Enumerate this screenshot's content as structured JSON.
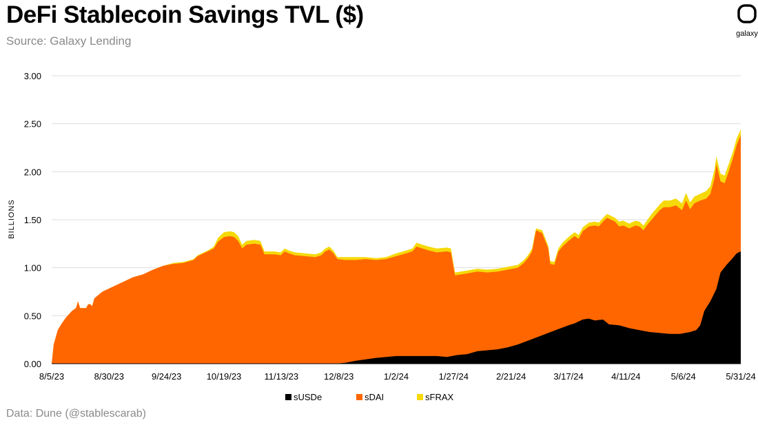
{
  "header": {
    "title": "DeFi Stablecoin Savings TVL ($)",
    "subtitle": "Source: Galaxy Lending"
  },
  "footer": {
    "note": "Data: Dune (@stablescarab)"
  },
  "logo": {
    "text": "galaxy",
    "icon": "galaxy-logo-icon"
  },
  "colors": {
    "sUSDe": "#000000",
    "sDAI": "#ff6600",
    "sFRAX": "#f5d90a",
    "grid": "#dddddd"
  },
  "chart_data": {
    "type": "area",
    "stacked": true,
    "ylabel": "BILLIONS",
    "ylim": [
      0,
      3.0
    ],
    "yticks": [
      "0.00",
      "0.50",
      "1.00",
      "1.50",
      "2.00",
      "2.50",
      "3.00"
    ],
    "xticks": [
      "8/5/23",
      "8/30/23",
      "9/24/23",
      "10/19/23",
      "11/13/23",
      "12/8/23",
      "1/2/24",
      "1/27/24",
      "2/21/24",
      "3/17/24",
      "4/11/24",
      "5/6/24",
      "5/31/24"
    ],
    "grid": true,
    "legend_position": "bottom-center",
    "series": [
      {
        "name": "sUSDe",
        "color": "#000000",
        "points": [
          [
            0,
            0
          ],
          [
            140,
            0
          ],
          [
            145,
            0.01
          ],
          [
            150,
            0.03
          ],
          [
            160,
            0.06
          ],
          [
            170,
            0.08
          ],
          [
            180,
            0.08
          ],
          [
            190,
            0.08
          ],
          [
            195,
            0.07
          ],
          [
            200,
            0.09
          ],
          [
            205,
            0.1
          ],
          [
            210,
            0.13
          ],
          [
            215,
            0.14
          ],
          [
            220,
            0.15
          ],
          [
            225,
            0.17
          ],
          [
            230,
            0.2
          ],
          [
            235,
            0.24
          ],
          [
            240,
            0.28
          ],
          [
            245,
            0.32
          ],
          [
            250,
            0.36
          ],
          [
            255,
            0.4
          ],
          [
            258,
            0.42
          ],
          [
            262,
            0.46
          ],
          [
            265,
            0.47
          ],
          [
            268,
            0.45
          ],
          [
            272,
            0.46
          ],
          [
            275,
            0.41
          ],
          [
            280,
            0.4
          ],
          [
            285,
            0.37
          ],
          [
            290,
            0.35
          ],
          [
            295,
            0.33
          ],
          [
            300,
            0.32
          ],
          [
            305,
            0.31
          ],
          [
            310,
            0.31
          ],
          [
            315,
            0.33
          ],
          [
            318,
            0.35
          ],
          [
            320,
            0.4
          ],
          [
            322,
            0.55
          ],
          [
            325,
            0.65
          ],
          [
            328,
            0.78
          ],
          [
            330,
            0.95
          ],
          [
            333,
            1.03
          ],
          [
            336,
            1.1
          ],
          [
            338,
            1.15
          ],
          [
            340,
            1.17
          ]
        ]
      },
      {
        "name": "sDAI",
        "color": "#ff6600",
        "points": [
          [
            0,
            0
          ],
          [
            1,
            0.2
          ],
          [
            3,
            0.35
          ],
          [
            5,
            0.42
          ],
          [
            7,
            0.48
          ],
          [
            10,
            0.55
          ],
          [
            12,
            0.58
          ],
          [
            13,
            0.65
          ],
          [
            14,
            0.58
          ],
          [
            17,
            0.58
          ],
          [
            18,
            0.62
          ],
          [
            19,
            0.62
          ],
          [
            20,
            0.6
          ],
          [
            21,
            0.68
          ],
          [
            25,
            0.75
          ],
          [
            30,
            0.8
          ],
          [
            35,
            0.85
          ],
          [
            40,
            0.9
          ],
          [
            45,
            0.93
          ],
          [
            50,
            0.98
          ],
          [
            55,
            1.02
          ],
          [
            60,
            1.04
          ],
          [
            65,
            1.05
          ],
          [
            70,
            1.08
          ],
          [
            72,
            1.12
          ],
          [
            75,
            1.15
          ],
          [
            77,
            1.17
          ],
          [
            80,
            1.2
          ],
          [
            82,
            1.27
          ],
          [
            85,
            1.32
          ],
          [
            88,
            1.33
          ],
          [
            90,
            1.32
          ],
          [
            92,
            1.28
          ],
          [
            94,
            1.2
          ],
          [
            96,
            1.24
          ],
          [
            100,
            1.25
          ],
          [
            103,
            1.24
          ],
          [
            105,
            1.14
          ],
          [
            110,
            1.14
          ],
          [
            113,
            1.13
          ],
          [
            115,
            1.17
          ],
          [
            117,
            1.15
          ],
          [
            120,
            1.13
          ],
          [
            125,
            1.12
          ],
          [
            130,
            1.11
          ],
          [
            133,
            1.13
          ],
          [
            135,
            1.17
          ],
          [
            137,
            1.19
          ],
          [
            139,
            1.15
          ],
          [
            141,
            1.09
          ],
          [
            145,
            1.08
          ],
          [
            150,
            1.08
          ],
          [
            155,
            1.09
          ],
          [
            160,
            1.08
          ],
          [
            165,
            1.09
          ],
          [
            170,
            1.12
          ],
          [
            175,
            1.15
          ],
          [
            178,
            1.17
          ],
          [
            180,
            1.22
          ],
          [
            183,
            1.2
          ],
          [
            186,
            1.18
          ],
          [
            190,
            1.16
          ],
          [
            195,
            1.17
          ],
          [
            197,
            1.16
          ],
          [
            199,
            0.92
          ],
          [
            205,
            0.94
          ],
          [
            210,
            0.96
          ],
          [
            215,
            0.95
          ],
          [
            220,
            0.96
          ],
          [
            225,
            0.98
          ],
          [
            230,
            1.0
          ],
          [
            233,
            1.05
          ],
          [
            235,
            1.1
          ],
          [
            237,
            1.17
          ],
          [
            238,
            1.28
          ],
          [
            239,
            1.39
          ],
          [
            242,
            1.36
          ],
          [
            245,
            1.2
          ],
          [
            246,
            1.04
          ],
          [
            248,
            1.03
          ],
          [
            250,
            1.17
          ],
          [
            252,
            1.22
          ],
          [
            255,
            1.28
          ],
          [
            258,
            1.33
          ],
          [
            260,
            1.3
          ],
          [
            262,
            1.38
          ],
          [
            265,
            1.43
          ],
          [
            268,
            1.44
          ],
          [
            270,
            1.43
          ],
          [
            272,
            1.48
          ],
          [
            274,
            1.52
          ],
          [
            276,
            1.5
          ],
          [
            278,
            1.48
          ],
          [
            280,
            1.43
          ],
          [
            282,
            1.44
          ],
          [
            285,
            1.41
          ],
          [
            288,
            1.44
          ],
          [
            290,
            1.43
          ],
          [
            292,
            1.39
          ],
          [
            294,
            1.45
          ],
          [
            296,
            1.5
          ],
          [
            298,
            1.55
          ],
          [
            300,
            1.6
          ],
          [
            302,
            1.63
          ],
          [
            305,
            1.63
          ],
          [
            308,
            1.65
          ],
          [
            311,
            1.6
          ],
          [
            313,
            1.7
          ],
          [
            315,
            1.61
          ],
          [
            317,
            1.67
          ],
          [
            320,
            1.7
          ],
          [
            323,
            1.72
          ],
          [
            325,
            1.77
          ],
          [
            327,
            1.93
          ],
          [
            328,
            2.08
          ],
          [
            330,
            1.9
          ],
          [
            332,
            1.88
          ],
          [
            334,
            2.0
          ],
          [
            336,
            2.13
          ],
          [
            338,
            2.28
          ],
          [
            340,
            2.38
          ]
        ]
      },
      {
        "name": "sFRAX",
        "color": "#f5d90a",
        "points": [
          [
            0,
            0
          ],
          [
            1,
            0.2
          ],
          [
            3,
            0.35
          ],
          [
            5,
            0.42
          ],
          [
            7,
            0.48
          ],
          [
            10,
            0.55
          ],
          [
            12,
            0.58
          ],
          [
            13,
            0.65
          ],
          [
            14,
            0.58
          ],
          [
            17,
            0.58
          ],
          [
            18,
            0.62
          ],
          [
            19,
            0.62
          ],
          [
            20,
            0.6
          ],
          [
            21,
            0.68
          ],
          [
            25,
            0.75
          ],
          [
            30,
            0.8
          ],
          [
            35,
            0.85
          ],
          [
            40,
            0.9
          ],
          [
            45,
            0.93
          ],
          [
            50,
            0.98
          ],
          [
            55,
            1.02
          ],
          [
            60,
            1.05
          ],
          [
            65,
            1.06
          ],
          [
            70,
            1.09
          ],
          [
            72,
            1.13
          ],
          [
            75,
            1.16
          ],
          [
            77,
            1.18
          ],
          [
            80,
            1.22
          ],
          [
            82,
            1.31
          ],
          [
            85,
            1.37
          ],
          [
            88,
            1.38
          ],
          [
            90,
            1.37
          ],
          [
            92,
            1.33
          ],
          [
            94,
            1.24
          ],
          [
            96,
            1.28
          ],
          [
            100,
            1.29
          ],
          [
            103,
            1.28
          ],
          [
            105,
            1.17
          ],
          [
            110,
            1.17
          ],
          [
            113,
            1.16
          ],
          [
            115,
            1.2
          ],
          [
            117,
            1.18
          ],
          [
            120,
            1.16
          ],
          [
            125,
            1.15
          ],
          [
            130,
            1.14
          ],
          [
            133,
            1.16
          ],
          [
            135,
            1.2
          ],
          [
            137,
            1.22
          ],
          [
            139,
            1.18
          ],
          [
            141,
            1.11
          ],
          [
            145,
            1.11
          ],
          [
            150,
            1.11
          ],
          [
            155,
            1.11
          ],
          [
            160,
            1.1
          ],
          [
            165,
            1.11
          ],
          [
            170,
            1.15
          ],
          [
            175,
            1.18
          ],
          [
            178,
            1.2
          ],
          [
            180,
            1.26
          ],
          [
            183,
            1.24
          ],
          [
            186,
            1.22
          ],
          [
            190,
            1.2
          ],
          [
            195,
            1.21
          ],
          [
            197,
            1.2
          ],
          [
            199,
            0.95
          ],
          [
            205,
            0.97
          ],
          [
            210,
            0.99
          ],
          [
            215,
            0.98
          ],
          [
            220,
            0.99
          ],
          [
            225,
            1.01
          ],
          [
            230,
            1.03
          ],
          [
            233,
            1.08
          ],
          [
            235,
            1.13
          ],
          [
            237,
            1.2
          ],
          [
            238,
            1.31
          ],
          [
            239,
            1.41
          ],
          [
            242,
            1.39
          ],
          [
            245,
            1.23
          ],
          [
            246,
            1.07
          ],
          [
            248,
            1.06
          ],
          [
            250,
            1.2
          ],
          [
            252,
            1.26
          ],
          [
            255,
            1.32
          ],
          [
            258,
            1.37
          ],
          [
            260,
            1.34
          ],
          [
            262,
            1.42
          ],
          [
            265,
            1.47
          ],
          [
            268,
            1.48
          ],
          [
            270,
            1.47
          ],
          [
            272,
            1.52
          ],
          [
            274,
            1.56
          ],
          [
            276,
            1.54
          ],
          [
            278,
            1.52
          ],
          [
            280,
            1.48
          ],
          [
            282,
            1.49
          ],
          [
            285,
            1.46
          ],
          [
            288,
            1.49
          ],
          [
            290,
            1.48
          ],
          [
            292,
            1.44
          ],
          [
            294,
            1.5
          ],
          [
            296,
            1.56
          ],
          [
            298,
            1.61
          ],
          [
            300,
            1.66
          ],
          [
            302,
            1.7
          ],
          [
            305,
            1.7
          ],
          [
            308,
            1.72
          ],
          [
            311,
            1.67
          ],
          [
            313,
            1.78
          ],
          [
            315,
            1.68
          ],
          [
            317,
            1.74
          ],
          [
            320,
            1.77
          ],
          [
            323,
            1.8
          ],
          [
            325,
            1.85
          ],
          [
            327,
            2.02
          ],
          [
            328,
            2.16
          ],
          [
            330,
            1.98
          ],
          [
            332,
            1.96
          ],
          [
            334,
            2.08
          ],
          [
            336,
            2.2
          ],
          [
            338,
            2.35
          ],
          [
            340,
            2.44
          ]
        ]
      }
    ],
    "x_domain": [
      0,
      340
    ],
    "legend": [
      {
        "label": "sUSDe",
        "color": "#000000"
      },
      {
        "label": "sDAI",
        "color": "#ff6600"
      },
      {
        "label": "sFRAX",
        "color": "#f5d90a"
      }
    ]
  }
}
